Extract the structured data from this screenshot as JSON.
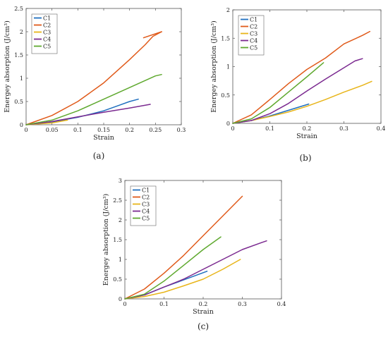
{
  "chart_data": [
    {
      "type": "line",
      "title": "",
      "xlabel": "Strain",
      "ylabel": "Energey absorption (J/cm³)",
      "xlim": [
        0,
        0.3
      ],
      "ylim": [
        0,
        2.5
      ],
      "xticks": [
        0,
        0.05,
        0.1,
        0.15,
        0.2,
        0.25,
        0.3
      ],
      "yticks": [
        0,
        0.5,
        1,
        1.5,
        2,
        2.5
      ],
      "xtick_labels": [
        "0",
        "0.05",
        "0.1",
        "0.15",
        "0.2",
        "0.25",
        "0.3"
      ],
      "ytick_labels": [
        "0",
        "0.5",
        "1",
        "1.5",
        "2",
        "2.5"
      ],
      "legend_position": "top-left",
      "grid": false,
      "caption": "(a)",
      "series": [
        {
          "name": "C1",
          "color": "#1f6fbf",
          "points": [
            [
              0,
              0
            ],
            [
              0.05,
              0.06
            ],
            [
              0.1,
              0.16
            ],
            [
              0.15,
              0.3
            ],
            [
              0.18,
              0.42
            ],
            [
              0.2,
              0.5
            ],
            [
              0.217,
              0.55
            ]
          ]
        },
        {
          "name": "C2",
          "color": "#e05a1a",
          "points": [
            [
              0,
              0
            ],
            [
              0.05,
              0.2
            ],
            [
              0.1,
              0.5
            ],
            [
              0.15,
              0.9
            ],
            [
              0.2,
              1.4
            ],
            [
              0.23,
              1.72
            ],
            [
              0.245,
              1.9
            ],
            [
              0.262,
              2.0
            ]
          ]
        },
        {
          "name": "C3",
          "color": "#e8b51a",
          "points": [
            [
              0,
              0
            ],
            [
              0.05,
              0.04
            ],
            [
              0.08,
              0.1
            ]
          ]
        },
        {
          "name": "C4",
          "color": "#7b2a90",
          "points": [
            [
              0,
              0
            ],
            [
              0.05,
              0.07
            ],
            [
              0.1,
              0.17
            ],
            [
              0.15,
              0.27
            ],
            [
              0.2,
              0.36
            ],
            [
              0.24,
              0.44
            ]
          ]
        },
        {
          "name": "C5",
          "color": "#5fa92f",
          "points": [
            [
              0,
              0
            ],
            [
              0.05,
              0.1
            ],
            [
              0.1,
              0.3
            ],
            [
              0.15,
              0.55
            ],
            [
              0.2,
              0.8
            ],
            [
              0.25,
              1.05
            ],
            [
              0.262,
              1.08
            ]
          ]
        }
      ],
      "extra_segments": [
        {
          "series": "C2",
          "color": "#e05a1a",
          "points": [
            [
              0.227,
              1.87
            ],
            [
              0.262,
              2.0
            ]
          ]
        }
      ]
    },
    {
      "type": "line",
      "title": "",
      "xlabel": "Strain",
      "ylabel": "Energey absorption (J/cm³)",
      "xlim": [
        0,
        0.4
      ],
      "ylim": [
        0,
        2
      ],
      "xticks": [
        0,
        0.1,
        0.2,
        0.3,
        0.4
      ],
      "yticks": [
        0,
        0.5,
        1,
        1.5,
        2
      ],
      "xtick_labels": [
        "0",
        "0.1",
        "0.2",
        "0.3",
        "0.4"
      ],
      "ytick_labels": [
        "0",
        "0.5",
        "1",
        "1.5",
        "2"
      ],
      "legend_position": "top-left",
      "grid": false,
      "caption": "(b)",
      "series": [
        {
          "name": "C1",
          "color": "#1f6fbf",
          "points": [
            [
              0,
              0
            ],
            [
              0.05,
              0.05
            ],
            [
              0.1,
              0.13
            ],
            [
              0.15,
              0.23
            ],
            [
              0.205,
              0.34
            ]
          ]
        },
        {
          "name": "C2",
          "color": "#e05a1a",
          "points": [
            [
              0,
              0
            ],
            [
              0.05,
              0.15
            ],
            [
              0.1,
              0.42
            ],
            [
              0.15,
              0.7
            ],
            [
              0.2,
              0.95
            ],
            [
              0.25,
              1.15
            ],
            [
              0.3,
              1.4
            ],
            [
              0.35,
              1.55
            ],
            [
              0.37,
              1.62
            ]
          ]
        },
        {
          "name": "C3",
          "color": "#e8b51a",
          "points": [
            [
              0,
              0
            ],
            [
              0.05,
              0.05
            ],
            [
              0.1,
              0.12
            ],
            [
              0.15,
              0.2
            ],
            [
              0.2,
              0.3
            ],
            [
              0.25,
              0.42
            ],
            [
              0.3,
              0.55
            ],
            [
              0.35,
              0.67
            ],
            [
              0.375,
              0.74
            ]
          ]
        },
        {
          "name": "C4",
          "color": "#7b2a90",
          "points": [
            [
              0,
              0
            ],
            [
              0.05,
              0.05
            ],
            [
              0.1,
              0.17
            ],
            [
              0.15,
              0.35
            ],
            [
              0.2,
              0.57
            ],
            [
              0.25,
              0.78
            ],
            [
              0.3,
              0.98
            ],
            [
              0.33,
              1.1
            ],
            [
              0.35,
              1.14
            ]
          ]
        },
        {
          "name": "C5",
          "color": "#5fa92f",
          "points": [
            [
              0,
              0
            ],
            [
              0.05,
              0.08
            ],
            [
              0.1,
              0.28
            ],
            [
              0.15,
              0.55
            ],
            [
              0.2,
              0.82
            ],
            [
              0.245,
              1.07
            ]
          ]
        }
      ]
    },
    {
      "type": "line",
      "title": "",
      "xlabel": "Strain",
      "ylabel": "Energey absorption (J/cm³)",
      "xlim": [
        0,
        0.4
      ],
      "ylim": [
        0,
        3
      ],
      "xticks": [
        0,
        0.1,
        0.2,
        0.3,
        0.4
      ],
      "yticks": [
        0,
        0.5,
        1,
        1.5,
        2,
        2.5,
        3
      ],
      "xtick_labels": [
        "0",
        "0.1",
        "0.2",
        "0.3",
        "0.4"
      ],
      "ytick_labels": [
        "0",
        "0.5",
        "1",
        "1.5",
        "2",
        "2.5",
        "3"
      ],
      "legend_position": "top-left",
      "grid": false,
      "caption": "(c)",
      "series": [
        {
          "name": "C1",
          "color": "#1f6fbf",
          "points": [
            [
              0,
              0
            ],
            [
              0.05,
              0.1
            ],
            [
              0.1,
              0.3
            ],
            [
              0.15,
              0.48
            ],
            [
              0.21,
              0.7
            ]
          ]
        },
        {
          "name": "C2",
          "color": "#e05a1a",
          "points": [
            [
              0,
              0
            ],
            [
              0.05,
              0.25
            ],
            [
              0.1,
              0.65
            ],
            [
              0.15,
              1.1
            ],
            [
              0.2,
              1.6
            ],
            [
              0.25,
              2.1
            ],
            [
              0.3,
              2.6
            ]
          ]
        },
        {
          "name": "C3",
          "color": "#e8b51a",
          "points": [
            [
              0,
              0
            ],
            [
              0.05,
              0.06
            ],
            [
              0.1,
              0.17
            ],
            [
              0.15,
              0.33
            ],
            [
              0.2,
              0.5
            ],
            [
              0.25,
              0.75
            ],
            [
              0.295,
              1.0
            ]
          ]
        },
        {
          "name": "C4",
          "color": "#7b2a90",
          "points": [
            [
              0,
              0
            ],
            [
              0.05,
              0.1
            ],
            [
              0.1,
              0.3
            ],
            [
              0.15,
              0.5
            ],
            [
              0.2,
              0.75
            ],
            [
              0.25,
              1.0
            ],
            [
              0.3,
              1.25
            ],
            [
              0.35,
              1.43
            ],
            [
              0.362,
              1.47
            ]
          ]
        },
        {
          "name": "C5",
          "color": "#5fa92f",
          "points": [
            [
              0,
              0
            ],
            [
              0.05,
              0.12
            ],
            [
              0.1,
              0.45
            ],
            [
              0.15,
              0.85
            ],
            [
              0.2,
              1.25
            ],
            [
              0.245,
              1.57
            ]
          ]
        }
      ]
    }
  ]
}
